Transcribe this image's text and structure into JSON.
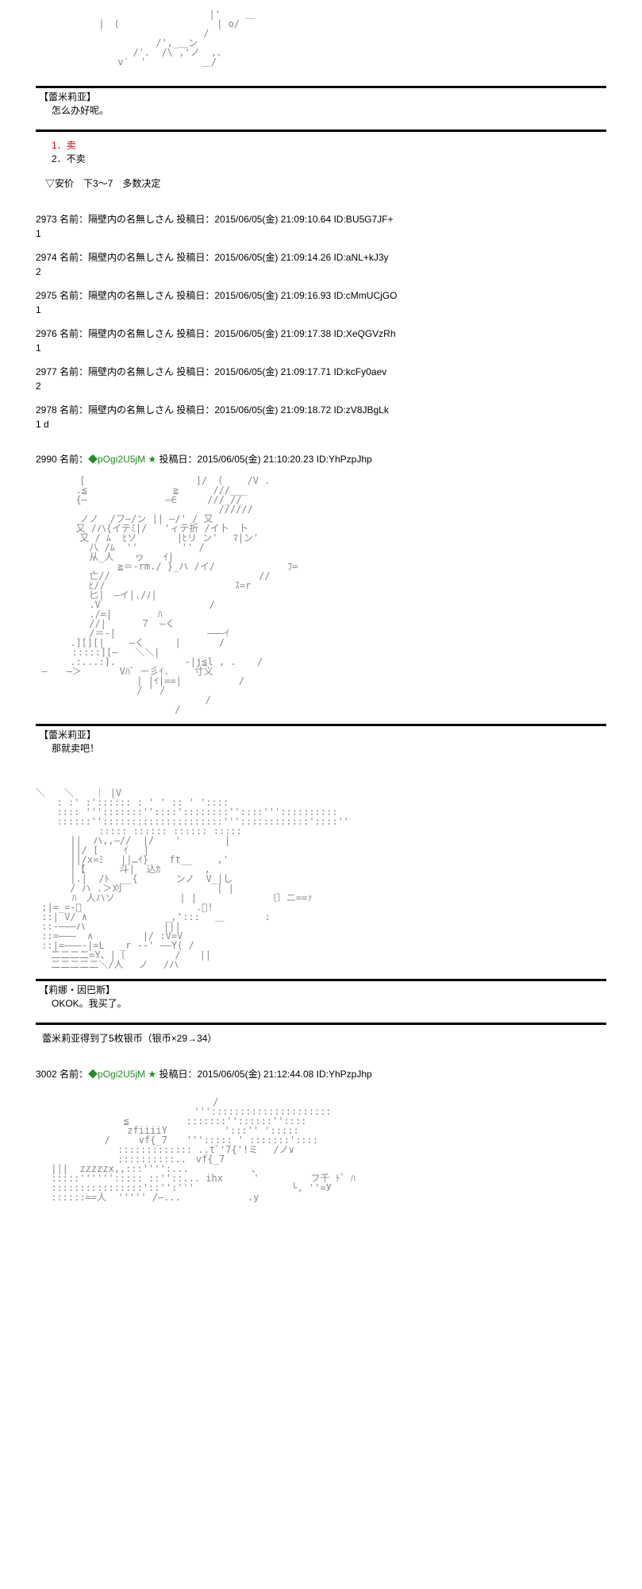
{
  "ascii_fragments": {
    "art1": " 　　　　[　　　　　　　　　　　 ]/ 〔　　 /V .\n 　　　 .≦　　　　　　　　　≧　　　 ///___\n 　　　 {―　　　　　　 　 ―∈　 　 ///_//\n 　　　　　　　　　　　　　　　　　　 //////\n 　　　　ノノ  /フ―/ン || ―/' / 又\n 　　　 又 /ハ{イテﾐ|/   'ィテ折 /イ卜　卜\n 　　　　又 / ﾑ  ﾋソ 　　　 |ﾋリ ン' 　ﾏ|ン'\n 　　　　　八 /ﾑ  '' 　　　　'' /\n 　　　　　从_人　  ヮ　　ｲ|\n 　　　　　　　　≧＝-rm./ }_ハ /イ/　　　　　　　 ﾌ=\n 　　　　　亡//　　　　　　　 　 　 　 　 　 //\n 　　　　　ﾋ//　　　　　　　　　　　　　 ｽ=r\n 　　　　　匕|　―イ|./ﾉ|\n 　　　　　.V 　　　　　　　 　 　 /\n 　　　　　./=|　　 　  ﾊ\n 　　　　　//|　　　 ７　―く\n 　　　　　/＝-|　　　　　　　　　 ―――ｲ\n 　　　.][][|　　 ―く　 　 |　　　　/\n 　　  :::::][―   ＼＼|\n 　　　.:...:].　　　　　 　 -|j≦l , . 　 /\n ―　　―＞　　　　Vﾊﾞ ㅡ彡ｲ.　 　寸义\n 　　　　　　　　　　| |ｲ|==|　　　　　　/\n 　　　　　　　　　　/ ' /\n 　　　　　　　　　　　　　 　　　 /\n 　　　　　　　　　　　　　　/",
    "art2": "＼　　＼ 　 ｜ |V\n 　 : :' :':::::: : ' ' :: ' '::::\n 　 :::: ''':::::::''::::'::::::::''::::'''::::::::::\n 　 ::::::'':::::::::::::::::::::'''::::::::::::'::::''\n 　　　　　　::::: :::::: :::::: :::::\n 　　　||  ハ,,―//  |/ 　 '　　　 　|\n 　　　||/ [　　 ｲ　 |\n 　　　||/x=ﾐ   ||…ｲ}　  ft__　　 ,'\n 　　　|【　　 　斗|  込ｶ　　　　 ,\n 　　　|.|  /ﾄ  __{　　　　ンノ  V_|し\n 　　　/ ハ .＞刈　　　　　　　　　　| |\n 　 　 ﾊ　人ハソ　　　 　 　 | |　　 　 　 　 〔〕ニ==ｧ\n ;|=_=-ﾞ 　　　　　　 　 　 　 .：!\n ::| V/ ∧　　　　　 　 　_,':::　 ＿　 　 　:\n ::-―――ハ　　　　　　 　 |||\n ::=―――  ∧　　 　　 |/ :V=V\n ::|=―――-|=L 　_r --' ――Y( /\n 　二二二二=Y、|〔　　　 　 /　　||\n 　二二二二二＼/人　 ノ　 /ハ",
    "art3": "　　　　　　　　　　　　　　　　　　 /\n 　　　　　　　　　　　　　　　　''':::::::::::::::::::::\n 　　　　　　　　 ≦　　　　　　:::::::''::::::''::::\n 　　　　　　　　　zfiiiiY　　　　　　':::'' ':::::\n 　　　　　　 /　　　vf{_7　　'''::::: ' :::::::'::::\n 　　　　　　　　::::::::::::: ..tﾞ'7{'!ミ　 /ノ∨\n 　　　　　　　　::::::::::..　vf{_7\n 　|||  zzzzzx,,:::'''':... 　　　     、\n 　:::::''''''::::: ::''::... ihx　 　 ' 　 　 　 フ千 ﾄﾞ ﾊ\n 　::::::::::::::::'::'':'''　 　　　　　　　　 └, ''=У\n 　::::::==人  ''''' /―...　　　　　　　.y"
  },
  "sections": [
    {
      "type": "hr"
    },
    {
      "type": "speaker",
      "text": "【蕾米莉亚】"
    },
    {
      "type": "speech",
      "text": "怎么办好呢。"
    },
    {
      "type": "spacer"
    },
    {
      "type": "hr"
    },
    {
      "type": "choice-red",
      "text": "1．卖"
    },
    {
      "type": "choice",
      "text": "2．不卖"
    },
    {
      "type": "spacer"
    },
    {
      "type": "nabla",
      "text": "▽安价　下3～7　多数决定"
    }
  ],
  "posts": [
    {
      "no": "2973",
      "name": "隔壁内の名無しさん",
      "date": "2015/06/05(金) 21:09:10.64",
      "id": "BU5G7JF+",
      "body": "1"
    },
    {
      "no": "2974",
      "name": "隔壁内の名無しさん",
      "date": "2015/06/05(金) 21:09:14.26",
      "id": "aNL+kJ3y",
      "body": "2"
    },
    {
      "no": "2975",
      "name": "隔壁内の名無しさん",
      "date": "2015/06/05(金) 21:09:16.93",
      "id": "cMmUCjGO",
      "body": "1"
    },
    {
      "no": "2976",
      "name": "隔壁内の名無しさん",
      "date": "2015/06/05(金) 21:09:17.38",
      "id": "XeQGVzRh",
      "body": "1"
    },
    {
      "no": "2977",
      "name": "隔壁内の名無しさん",
      "date": "2015/06/05(金) 21:09:17.71",
      "id": "kcFy0aev",
      "body": "2"
    },
    {
      "no": "2978",
      "name": "隔壁内の名無しさん",
      "date": "2015/06/05(金) 21:09:18.72",
      "id": "zV8JBgLk",
      "body": "1 d"
    }
  ],
  "post_2990": {
    "no": "2990",
    "trip": "◆pOgi2U5jM",
    "star": "★",
    "date": "2015/06/05(金) 21:10:20.23",
    "id": "YhPzpJhp",
    "speaker": "【蕾米莉亚】",
    "speech": "那就卖吧！",
    "speaker2": "【莉娜・因巴斯】",
    "speech2": "OKOK。我买了。",
    "result": "蕾米莉亚得到了5枚银币（银币×29→34）"
  },
  "post_3002": {
    "no": "3002",
    "trip": "◆pOgi2U5jM",
    "star": "★",
    "date": "2015/06/05(金) 21:12:44.08",
    "id": "YhPzpJhp"
  },
  "labels": {
    "name_prefix": " 名前：",
    "date_prefix": " 投稿日：",
    "id_prefix": " ID:"
  },
  "colors": {
    "trip": "#228b22",
    "red": "#dd0000",
    "text": "#000000",
    "ascii": "#888888"
  }
}
